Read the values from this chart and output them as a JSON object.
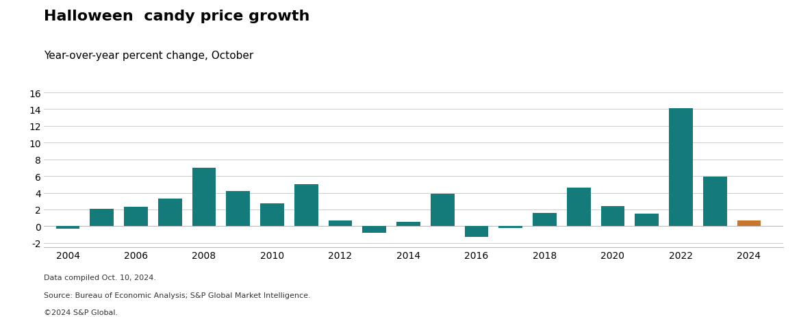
{
  "title": "Halloween  candy price growth",
  "subtitle": "Year-over-year percent change, October",
  "years": [
    2004,
    2005,
    2006,
    2007,
    2008,
    2009,
    2010,
    2011,
    2012,
    2013,
    2014,
    2015,
    2016,
    2017,
    2018,
    2019,
    2020,
    2021,
    2022,
    2023,
    2024
  ],
  "values": [
    -0.3,
    2.1,
    2.3,
    3.3,
    7.0,
    4.2,
    2.7,
    5.0,
    0.7,
    -0.8,
    0.5,
    3.9,
    -1.3,
    -0.2,
    1.6,
    4.6,
    2.4,
    1.5,
    14.1,
    5.9,
    0.7
  ],
  "colors": [
    "#147a7a",
    "#147a7a",
    "#147a7a",
    "#147a7a",
    "#147a7a",
    "#147a7a",
    "#147a7a",
    "#147a7a",
    "#147a7a",
    "#147a7a",
    "#147a7a",
    "#147a7a",
    "#147a7a",
    "#147a7a",
    "#147a7a",
    "#147a7a",
    "#147a7a",
    "#147a7a",
    "#147a7a",
    "#147a7a",
    "#c8762b"
  ],
  "ylim": [
    -2.5,
    16.5
  ],
  "yticks": [
    -2,
    0,
    2,
    4,
    6,
    8,
    10,
    12,
    14,
    16
  ],
  "xtick_years": [
    2004,
    2006,
    2008,
    2010,
    2012,
    2014,
    2016,
    2018,
    2020,
    2022,
    2024
  ],
  "footnote1": "Data compiled Oct. 10, 2024.",
  "footnote2": "Source: Bureau of Economic Analysis; S&P Global Market Intelligence.",
  "footnote3": "©2024 S&P Global.",
  "bg_color": "#ffffff",
  "title_fontsize": 16,
  "subtitle_fontsize": 11,
  "tick_fontsize": 10,
  "footnote_fontsize": 8,
  "bar_width": 0.7
}
